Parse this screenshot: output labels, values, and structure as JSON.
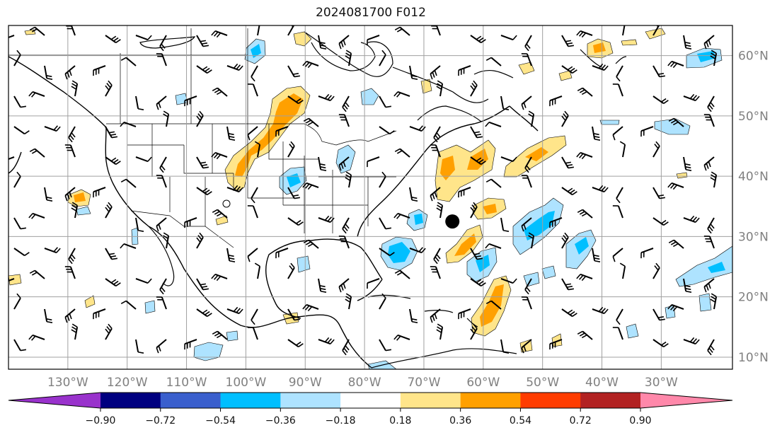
{
  "title": "2024081700 F012",
  "map": {
    "lon_range": [
      -140,
      -18
    ],
    "lat_range": [
      8,
      65
    ],
    "lon_ticks": [
      {
        "value": -130,
        "label": "130°W"
      },
      {
        "value": -120,
        "label": "120°W"
      },
      {
        "value": -110,
        "label": "110°W"
      },
      {
        "value": -100,
        "label": "100°W"
      },
      {
        "value": -90,
        "label": "90°W"
      },
      {
        "value": -80,
        "label": "80°W"
      },
      {
        "value": -70,
        "label": "70°W"
      },
      {
        "value": -60,
        "label": "60°W"
      },
      {
        "value": -50,
        "label": "50°W"
      },
      {
        "value": -40,
        "label": "40°W"
      },
      {
        "value": -30,
        "label": "30°W"
      }
    ],
    "lat_ticks": [
      {
        "value": 10,
        "label": "10°N"
      },
      {
        "value": 20,
        "label": "20°N"
      },
      {
        "value": 30,
        "label": "30°N"
      },
      {
        "value": 40,
        "label": "40°N"
      },
      {
        "value": 50,
        "label": "50°N"
      },
      {
        "value": 60,
        "label": "60°N"
      }
    ],
    "storm_marker": {
      "lon": -65.2,
      "lat": 32.5
    }
  },
  "colorbar": {
    "colors": [
      "#9932cc",
      "#000080",
      "#3a5fcd",
      "#00bfff",
      "#aee3ff",
      "#ffffff",
      "#ffe58a",
      "#ffa000",
      "#ff3c00",
      "#b22222",
      "#ff88aa"
    ],
    "tick_labels": [
      "−0.90",
      "−0.72",
      "−0.54",
      "−0.36",
      "−0.18",
      "0.18",
      "0.36",
      "0.54",
      "0.72",
      "0.90"
    ]
  },
  "colors": {
    "land_outline": "#000000",
    "grid": "#a0a0a0",
    "pos_light": "#ffe58a",
    "pos_mid": "#ffa000",
    "neg_light": "#aee3ff",
    "neg_mid": "#00bfff"
  }
}
